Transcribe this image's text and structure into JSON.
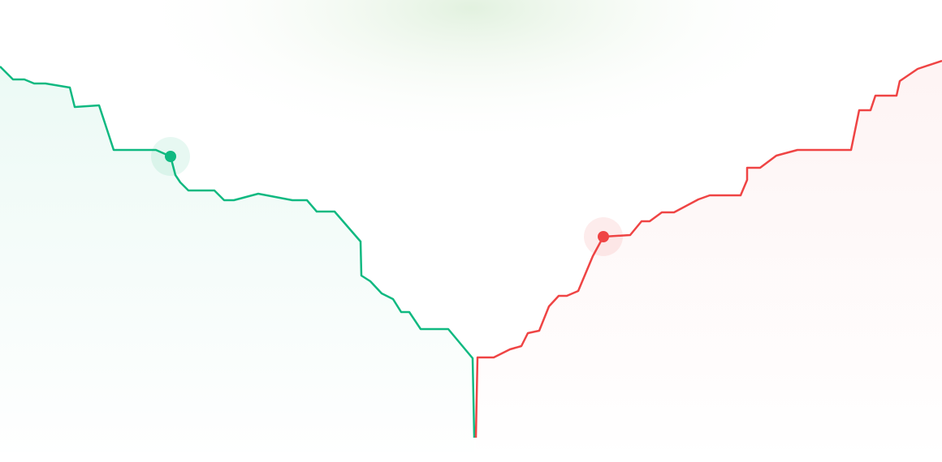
{
  "chart_data": {
    "type": "area",
    "title": "",
    "xlabel": "",
    "ylabel": "",
    "xlim": [
      0,
      116
    ],
    "ylim": [
      0,
      108
    ],
    "grid": false,
    "colors": {
      "bids": "#10b981",
      "asks": "#ef4444",
      "glow": "#d7efd9"
    },
    "series": [
      {
        "side": "bids",
        "points": [
          [
            0,
            91.6
          ],
          [
            1.6,
            88.4
          ],
          [
            3,
            88.4
          ],
          [
            4.2,
            87.4
          ],
          [
            5.6,
            87.4
          ],
          [
            8.6,
            86.4
          ],
          [
            9.2,
            81.6
          ],
          [
            12.2,
            82
          ],
          [
            14,
            71
          ],
          [
            19.2,
            71
          ],
          [
            21,
            69.4
          ],
          [
            21.6,
            64.8
          ],
          [
            22.2,
            63
          ],
          [
            23.2,
            61
          ],
          [
            26.4,
            61
          ],
          [
            27.6,
            58.6
          ],
          [
            28.8,
            58.6
          ],
          [
            31.8,
            60.2
          ],
          [
            36,
            58.6
          ],
          [
            37.8,
            58.6
          ],
          [
            39,
            55.8
          ],
          [
            41.2,
            55.8
          ],
          [
            44.4,
            48.4
          ],
          [
            44.5,
            40
          ],
          [
            45.6,
            38.6
          ],
          [
            47,
            35.6
          ],
          [
            48.4,
            34.2
          ],
          [
            49.4,
            31
          ],
          [
            50.4,
            31
          ],
          [
            51.8,
            26.8
          ],
          [
            55.2,
            26.8
          ],
          [
            58.2,
            19.6
          ],
          [
            58.4,
            0
          ]
        ],
        "highlight": [
          21,
          69.4
        ]
      },
      {
        "side": "asks",
        "points": [
          [
            58.6,
            0
          ],
          [
            58.8,
            19.8
          ],
          [
            60.8,
            19.8
          ],
          [
            62.8,
            21.8
          ],
          [
            64.2,
            22.6
          ],
          [
            65,
            25.8
          ],
          [
            66.4,
            26.4
          ],
          [
            67.6,
            32.4
          ],
          [
            68.8,
            35
          ],
          [
            69.8,
            35
          ],
          [
            71.2,
            36.2
          ],
          [
            73,
            44.8
          ],
          [
            74.3,
            49.6
          ],
          [
            77.6,
            50
          ],
          [
            79,
            53.4
          ],
          [
            80,
            53.4
          ],
          [
            81.5,
            55.6
          ],
          [
            83,
            55.6
          ],
          [
            86,
            58.8
          ],
          [
            87.4,
            59.8
          ],
          [
            91.2,
            59.8
          ],
          [
            92,
            63.6
          ],
          [
            92,
            66.6
          ],
          [
            93.6,
            66.6
          ],
          [
            95.6,
            69.6
          ],
          [
            98.2,
            71
          ],
          [
            104.8,
            71
          ],
          [
            105.8,
            80.8
          ],
          [
            107.2,
            80.8
          ],
          [
            107.8,
            84.4
          ],
          [
            110.4,
            84.4
          ],
          [
            110.8,
            88
          ],
          [
            113,
            91
          ],
          [
            116,
            93
          ]
        ],
        "highlight": [
          74.3,
          49.6
        ]
      }
    ]
  }
}
